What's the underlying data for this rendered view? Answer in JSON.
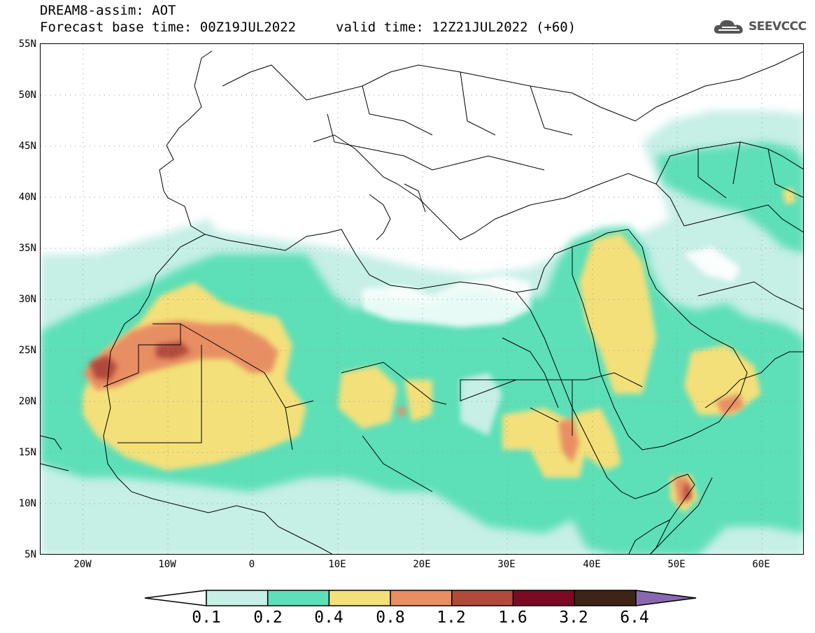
{
  "header": {
    "title": "DREAM8-assim: AOT",
    "base_time": "Forecast base time: 00Z19JUL2022",
    "valid_time": "valid time: 12Z21JUL2022 (+60)",
    "logo_text": "SEEVCCC"
  },
  "map": {
    "projection": "lat-lon",
    "lon_range": [
      -25,
      65
    ],
    "lat_range": [
      5,
      55
    ],
    "lat_labels": [
      "55N",
      "50N",
      "45N",
      "40N",
      "35N",
      "30N",
      "25N",
      "20N",
      "15N",
      "10N",
      "5N"
    ],
    "lon_labels": [
      "20W",
      "10W",
      "0",
      "10E",
      "20E",
      "30E",
      "40E",
      "50E",
      "60E"
    ],
    "gridlines": "dotted",
    "region": "North Africa, Middle East and Europe",
    "field": "aerosol optical thickness"
  },
  "colorbar": {
    "labels": [
      "0.1",
      "0.2",
      "0.4",
      "0.8",
      "1.2",
      "1.6",
      "3.2",
      "6.4"
    ],
    "colors": [
      "#c6efe6",
      "#5ddfb8",
      "#f4e07a",
      "#e88e64",
      "#b04a3a",
      "#7a0a25",
      "#3e2416",
      "#8a68b0"
    ],
    "extend": "both"
  }
}
